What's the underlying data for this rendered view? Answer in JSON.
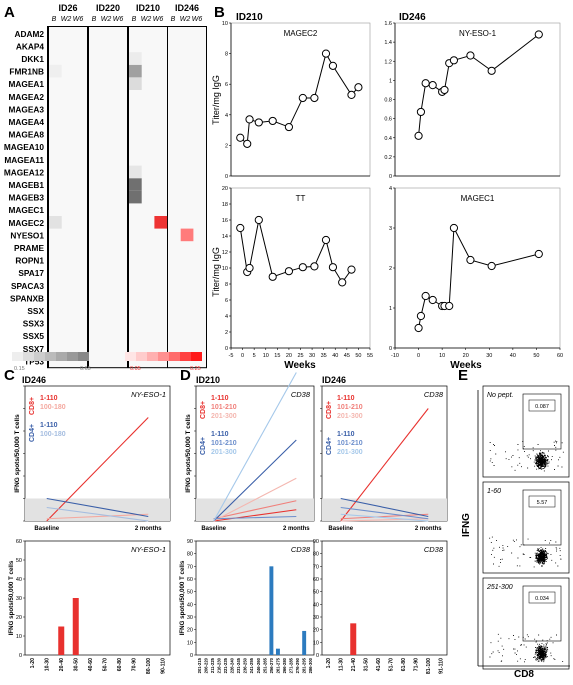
{
  "panels": {
    "A": "A",
    "B": "B",
    "C": "C",
    "D": "D",
    "E": "E"
  },
  "heatmap": {
    "patients": [
      "ID26",
      "ID220",
      "ID210",
      "ID246"
    ],
    "timepoints": [
      "B",
      "W2",
      "W6"
    ],
    "genes": [
      "ADAM2",
      "AKAP4",
      "DKK1",
      "FMR1NB",
      "MAGEA1",
      "MAGEA2",
      "MAGEA3",
      "MAGEA4",
      "MAGEA8",
      "MAGEA10",
      "MAGEA11",
      "MAGEA12",
      "MAGEB1",
      "MAGEB3",
      "MAGEC1",
      "MAGEC2",
      "NYESO1",
      "PRAME",
      "ROPN1",
      "SPA17",
      "SPACA3",
      "SPANXB",
      "SSX",
      "SSX3",
      "SSX5",
      "SSX7",
      "TP53"
    ],
    "gray_scale": {
      "min": "0.15",
      "max": "0.65",
      "colors": [
        "#eeeeee",
        "#dddddd",
        "#cccccc",
        "#bbbbbb",
        "#aaaaaa",
        "#999999",
        "#888888"
      ]
    },
    "red_scale": {
      "min": "0.05",
      "max": "0.25",
      "colors": [
        "#ffe5e5",
        "#ffcccc",
        "#ffb0b0",
        "#ff9090",
        "#ff6b6b",
        "#ff4040",
        "#ff1a1a"
      ]
    },
    "cells": [
      {
        "patient": "ID210",
        "tp": 0,
        "gene": "FMR1NB",
        "color": "#a0a0a0"
      },
      {
        "patient": "ID210",
        "tp": 0,
        "gene": "MAGEA1",
        "color": "#dcdcdc"
      },
      {
        "patient": "ID210",
        "tp": 0,
        "gene": "MAGEB1",
        "color": "#707070"
      },
      {
        "patient": "ID210",
        "tp": 0,
        "gene": "MAGEB3",
        "color": "#707070"
      },
      {
        "patient": "ID210",
        "tp": 0,
        "gene": "MAGEA12",
        "color": "#e6e6e6"
      },
      {
        "patient": "ID210",
        "tp": 0,
        "gene": "DKK1",
        "color": "#ececec"
      },
      {
        "patient": "ID210",
        "tp": 2,
        "gene": "MAGEC2",
        "color": "#ee3333"
      },
      {
        "patient": "ID246",
        "tp": 1,
        "gene": "NYESO1",
        "color": "#ff7b7b"
      },
      {
        "patient": "ID26",
        "tp": 0,
        "gene": "MAGEC2",
        "color": "#e2e2e2"
      },
      {
        "patient": "ID26",
        "tp": 0,
        "gene": "FMR1NB",
        "color": "#efefef"
      }
    ]
  },
  "panel_B": {
    "left_id": "ID210",
    "right_id": "ID246",
    "ylabel": "Titer/mg IgG",
    "xlabel": "Weeks"
  },
  "chart_data": [
    {
      "type": "line",
      "title": "MAGEC2",
      "patient": "ID210",
      "ylim": [
        0,
        10
      ],
      "yticks": [
        0,
        2,
        4,
        6,
        8,
        10
      ],
      "x": [
        -1,
        2,
        3,
        7,
        13,
        20,
        26,
        31,
        36,
        39,
        47,
        50
      ],
      "y": [
        2.5,
        2.1,
        3.7,
        3.5,
        3.6,
        3.2,
        5.1,
        5.1,
        8.0,
        7.2,
        5.3,
        5.8
      ]
    },
    {
      "type": "line",
      "title": "NY-ESO-1",
      "patient": "ID246",
      "ylim": [
        0,
        1.6
      ],
      "yticks": [
        0,
        0.2,
        0.4,
        0.6,
        0.8,
        1.0,
        1.2,
        1.4,
        1.6
      ],
      "x": [
        0,
        1,
        3,
        6,
        10,
        11,
        13,
        15,
        22,
        31,
        51
      ],
      "y": [
        0.42,
        0.67,
        0.97,
        0.95,
        0.88,
        0.9,
        1.18,
        1.21,
        1.26,
        1.1,
        1.48
      ]
    },
    {
      "type": "line",
      "title": "TT",
      "patient": "ID210",
      "ylim": [
        0,
        20
      ],
      "yticks": [
        0,
        2,
        4,
        6,
        8,
        10,
        12,
        14,
        16,
        18,
        20
      ],
      "xlim": [
        -5,
        55
      ],
      "xticks": [
        -5,
        0,
        5,
        10,
        15,
        20,
        25,
        30,
        35,
        40,
        45,
        50,
        55
      ],
      "x": [
        -1,
        2,
        3,
        7,
        13,
        20,
        26,
        31,
        36,
        39,
        43,
        47
      ],
      "y": [
        15,
        9.5,
        10,
        16,
        8.9,
        9.6,
        10.1,
        10.2,
        13.5,
        10.1,
        8.2,
        9.8
      ]
    },
    {
      "type": "line",
      "title": "MAGEC1",
      "patient": "ID246",
      "ylim": [
        0,
        4
      ],
      "yticks": [
        0,
        1,
        2,
        3,
        4
      ],
      "xlim": [
        -10,
        60
      ],
      "xticks": [
        -10,
        0,
        10,
        20,
        30,
        40,
        50,
        60
      ],
      "x": [
        0,
        1,
        3,
        6,
        10,
        11,
        13,
        15,
        22,
        31,
        51
      ],
      "y": [
        0.5,
        0.8,
        1.3,
        1.2,
        1.05,
        1.05,
        1.05,
        3.0,
        2.2,
        2.05,
        2.35
      ]
    },
    {
      "type": "line",
      "title": "NY-ESO-1",
      "patient": "ID246",
      "ylabel": "IFNG spots/50,000 T cells",
      "categories": [
        "Baseline",
        "2 months"
      ],
      "ylim": [
        0,
        60
      ],
      "series": [
        {
          "name": "1-110",
          "group": "CD8+",
          "color": "#e8312e",
          "values": [
            0,
            46
          ]
        },
        {
          "name": "100-180",
          "group": "CD8+",
          "color": "#f4a9a0",
          "values": [
            1,
            3
          ]
        },
        {
          "name": "1-110",
          "group": "CD4+",
          "color": "#3a5fa8",
          "values": [
            10,
            2
          ]
        },
        {
          "name": "100-180",
          "group": "CD4+",
          "color": "#a5bde0",
          "values": [
            6,
            0
          ]
        }
      ]
    },
    {
      "type": "line",
      "title": "CD38",
      "patient": "ID210",
      "ylabel": "IFNG spots/50,000 T cells",
      "categories": [
        "Baseline",
        "2 months"
      ],
      "ylim": [
        0,
        60
      ],
      "series": [
        {
          "name": "1-110",
          "group": "CD8+",
          "color": "#e8312e",
          "values": [
            0,
            5
          ]
        },
        {
          "name": "101-210",
          "group": "CD8+",
          "color": "#f07f7a",
          "values": [
            1,
            9
          ]
        },
        {
          "name": "201-300",
          "group": "CD8+",
          "color": "#f4b7b0",
          "values": [
            0,
            19
          ]
        },
        {
          "name": "1-110",
          "group": "CD4+",
          "color": "#3a5fa8",
          "values": [
            0,
            36
          ]
        },
        {
          "name": "101-210",
          "group": "CD4+",
          "color": "#6d8fcc",
          "values": [
            1,
            2
          ]
        },
        {
          "name": "201-300",
          "group": "CD4+",
          "color": "#a5c8ea",
          "values": [
            0,
            66
          ]
        }
      ]
    },
    {
      "type": "line",
      "title": "CD38",
      "patient": "ID246",
      "categories": [
        "Baseline",
        "2 months"
      ],
      "ylim": [
        0,
        60
      ],
      "series": [
        {
          "name": "1-110",
          "group": "CD8+",
          "color": "#e8312e",
          "values": [
            0,
            50
          ]
        },
        {
          "name": "101-210",
          "group": "CD8+",
          "color": "#f07f7a",
          "values": [
            1,
            3
          ]
        },
        {
          "name": "201-300",
          "group": "CD8+",
          "color": "#f4b7b0",
          "values": [
            0,
            1
          ]
        },
        {
          "name": "1-110",
          "group": "CD4+",
          "color": "#3a5fa8",
          "values": [
            10,
            2
          ]
        },
        {
          "name": "101-210",
          "group": "CD4+",
          "color": "#6d8fcc",
          "values": [
            6,
            1
          ]
        },
        {
          "name": "201-300",
          "group": "CD4+",
          "color": "#a5c8ea",
          "values": [
            3,
            0
          ]
        }
      ]
    },
    {
      "type": "bar",
      "title": "NY-ESO-1",
      "ylabel": "IFNG spots/50,000 T cells",
      "ylim": [
        0,
        60
      ],
      "yticks": [
        0,
        10,
        20,
        30,
        40,
        50,
        60
      ],
      "categories": [
        "1-20",
        "10-30",
        "20-40",
        "30-50",
        "40-60",
        "50-70",
        "60-80",
        "70-90",
        "80-100",
        "90-110"
      ],
      "values": [
        0,
        0,
        15,
        30,
        0,
        0,
        0,
        0,
        0,
        0
      ],
      "color": "#e8312e"
    },
    {
      "type": "bar",
      "title": "CD38",
      "ylabel": "IFNG spots/50,000 T cells",
      "ylim": [
        0,
        90
      ],
      "yticks": [
        0,
        10,
        20,
        30,
        40,
        50,
        60,
        70,
        80,
        90
      ],
      "categories": [
        "201-215",
        "206-220",
        "211-225",
        "216-230",
        "221-235",
        "226-240",
        "231-245",
        "236-250",
        "241-255",
        "246-260",
        "251-265",
        "256-270",
        "261-275",
        "266-280",
        "271-285",
        "276-290",
        "281-295",
        "286-300"
      ],
      "values": [
        0,
        0,
        0,
        0,
        0,
        0,
        0,
        0,
        0,
        0,
        0,
        70,
        5,
        0,
        0,
        0,
        19,
        0
      ],
      "color": "#2c7bbf"
    },
    {
      "type": "bar",
      "title": "CD38",
      "ylim": [
        0,
        90
      ],
      "yticks": [
        0,
        10,
        20,
        30,
        40,
        50,
        60,
        70,
        80,
        90
      ],
      "categories": [
        "1-20",
        "11-30",
        "21-40",
        "31-50",
        "41-60",
        "51-70",
        "61-80",
        "71-90",
        "81-100",
        "91-110"
      ],
      "values": [
        0,
        0,
        25,
        0,
        0,
        0,
        0,
        0,
        0,
        0
      ],
      "color": "#e8312e"
    }
  ],
  "panel_C": {
    "id": "ID246",
    "protein": "NY-ESO-1"
  },
  "panel_D": {
    "left_id": "ID210",
    "right_id": "ID246",
    "protein": "CD38"
  },
  "legend_C": {
    "cd8": "CD8+",
    "cd4": "CD4+",
    "items8": [
      "1-110",
      "100-180"
    ],
    "items4": [
      "1-110",
      "100-180"
    ]
  },
  "legend_D": {
    "cd8": "CD8+",
    "cd4": "CD4+",
    "items8": [
      "1-110",
      "101-210",
      "201-300"
    ],
    "items4": [
      "1-110",
      "101-210",
      "201-300"
    ]
  },
  "flow": {
    "ylabel": "IFNG",
    "xlabel": "CD8",
    "plots": [
      {
        "label": "No pept.",
        "value": "0.087"
      },
      {
        "label": "1-60",
        "value": "5.57"
      },
      {
        "label": "251-300",
        "value": "0.034"
      }
    ]
  }
}
